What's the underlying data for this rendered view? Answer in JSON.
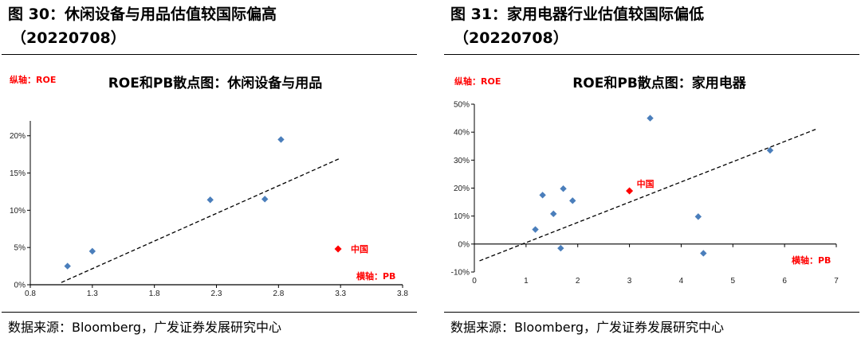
{
  "panels": [
    {
      "figure_title": "图 30：休闲设备与用品估值较国际偏高",
      "figure_subtitle": "（20220708）",
      "source": "数据来源：Bloomberg，广发证券发展研究中心"
    },
    {
      "figure_title": "图 31：家用电器行业估值较国际偏低",
      "figure_subtitle": "（20220708）",
      "source": "数据来源：Bloomberg，广发证券发展研究中心"
    }
  ],
  "chart_data": [
    {
      "type": "scatter",
      "title": "ROE和PB散点图：休闲设备与用品",
      "ylabel": "纵轴：ROE",
      "xlabel": "横轴：PB",
      "xlim": [
        0.8,
        3.8
      ],
      "ylim": [
        0,
        0.22
      ],
      "xticks": [
        0.8,
        1.3,
        1.8,
        2.3,
        2.8,
        3.3,
        3.8
      ],
      "xtick_labels": [
        "0.8",
        "1.3",
        "1.8",
        "2.3",
        "2.8",
        "3.3",
        "3.8"
      ],
      "yticks": [
        0,
        0.05,
        0.1,
        0.15,
        0.2
      ],
      "ytick_labels": [
        "0%",
        "5%",
        "10%",
        "15%",
        "20%"
      ],
      "colors": {
        "points": "#4a7ebb",
        "china": "#ff0000",
        "trend": "#000000"
      },
      "points": [
        {
          "x": 1.1,
          "y": 0.025
        },
        {
          "x": 1.3,
          "y": 0.045
        },
        {
          "x": 2.25,
          "y": 0.114
        },
        {
          "x": 2.69,
          "y": 0.115
        },
        {
          "x": 2.82,
          "y": 0.195
        }
      ],
      "highlight": {
        "label": "中国",
        "x": 3.28,
        "y": 0.048
      },
      "trendline": [
        {
          "x": 1.05,
          "y": 0.003
        },
        {
          "x": 3.3,
          "y": 0.17
        }
      ]
    },
    {
      "type": "scatter",
      "title": "ROE和PB散点图：家用电器",
      "ylabel": "纵轴：ROE",
      "xlabel": "横轴：PB",
      "xlim": [
        0,
        7
      ],
      "ylim": [
        -0.1,
        0.5
      ],
      "xticks": [
        0,
        1,
        2,
        3,
        4,
        5,
        6,
        7
      ],
      "xtick_labels": [
        "0",
        "1",
        "2",
        "3",
        "4",
        "5",
        "6",
        "7"
      ],
      "yticks": [
        -0.1,
        0,
        0.1,
        0.2,
        0.3,
        0.4,
        0.5
      ],
      "ytick_labels": [
        "-10%",
        "0%",
        "10%",
        "20%",
        "30%",
        "40%",
        "50%"
      ],
      "colors": {
        "points": "#4a7ebb",
        "china": "#ff0000",
        "trend": "#000000"
      },
      "points": [
        {
          "x": 1.18,
          "y": 0.052
        },
        {
          "x": 1.32,
          "y": 0.175
        },
        {
          "x": 1.53,
          "y": 0.108
        },
        {
          "x": 1.67,
          "y": -0.015
        },
        {
          "x": 1.72,
          "y": 0.198
        },
        {
          "x": 1.9,
          "y": 0.155
        },
        {
          "x": 3.4,
          "y": 0.45
        },
        {
          "x": 4.33,
          "y": 0.098
        },
        {
          "x": 4.43,
          "y": -0.033
        },
        {
          "x": 5.72,
          "y": 0.335
        }
      ],
      "highlight": {
        "label": "中国",
        "x": 3.0,
        "y": 0.19
      },
      "trendline": [
        {
          "x": 0.1,
          "y": -0.06
        },
        {
          "x": 6.6,
          "y": 0.41
        }
      ]
    }
  ]
}
